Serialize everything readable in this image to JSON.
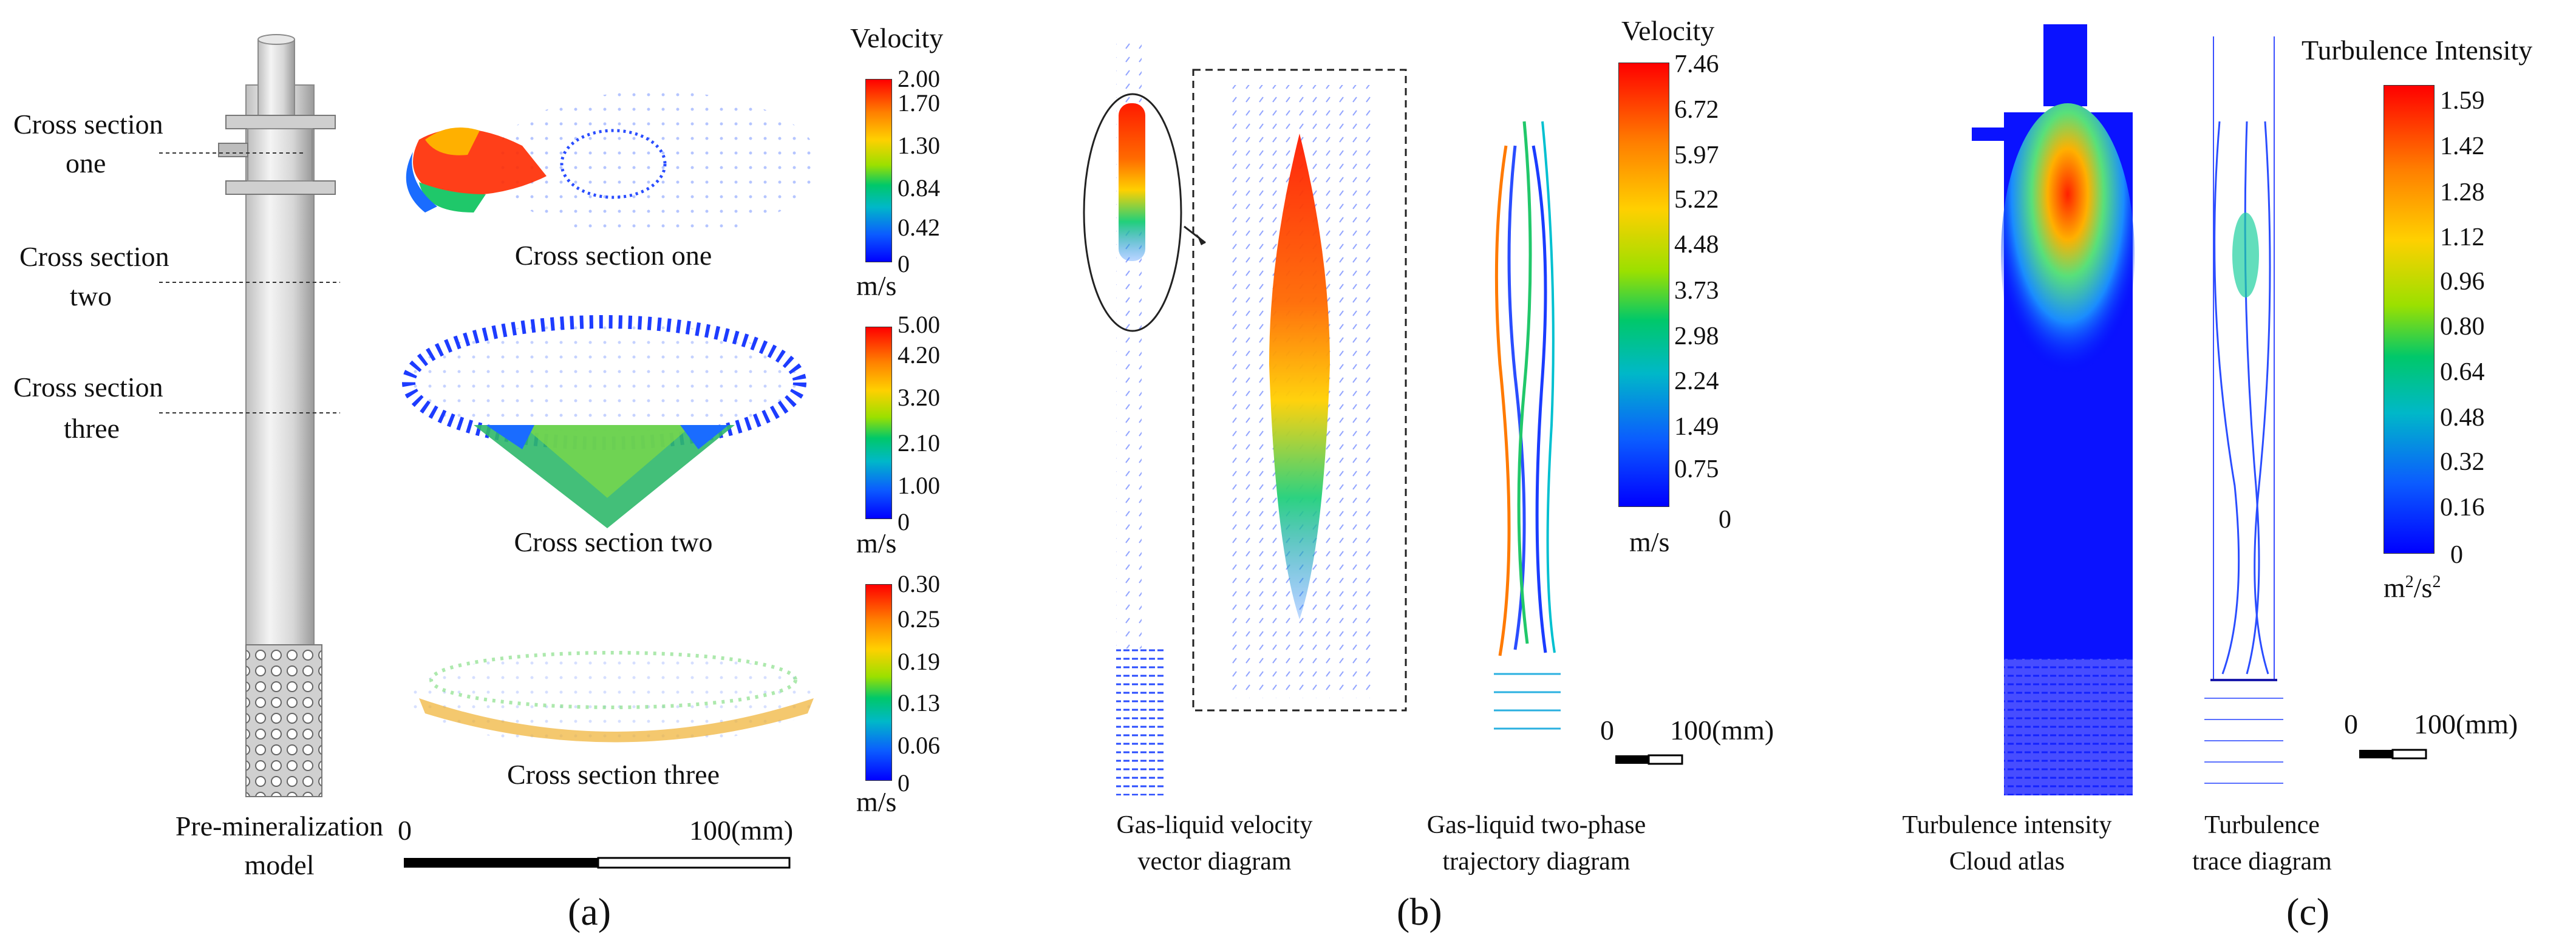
{
  "panel_a": {
    "labels": {
      "cross_one": [
        "Cross section",
        "one"
      ],
      "cross_two": [
        "Cross section",
        "two"
      ],
      "cross_three": [
        "Cross section",
        "three"
      ],
      "model": [
        "Pre-mineralization",
        "model"
      ],
      "view_one": "Cross section one",
      "view_two": "Cross section two",
      "view_three": "Cross section three"
    },
    "legend_title": "Velocity",
    "unit": "m/s",
    "colorbars": [
      {
        "ticks": [
          "2.00",
          "1.70",
          "1.30",
          "0.84",
          "0.42",
          "0"
        ]
      },
      {
        "ticks": [
          "5.00",
          "4.20",
          "3.20",
          "2.10",
          "1.00",
          "0"
        ]
      },
      {
        "ticks": [
          "0.30",
          "0.25",
          "0.19",
          "0.13",
          "0.06",
          "0"
        ]
      }
    ],
    "scale": {
      "start": "0",
      "end": "100(mm)"
    },
    "caption": "(a)"
  },
  "panel_b": {
    "legend_title": "Velocity",
    "unit": "m/s",
    "ticks": [
      "7.46",
      "6.72",
      "5.97",
      "5.22",
      "4.48",
      "3.73",
      "2.98",
      "2.24",
      "1.49",
      "0.75",
      "0"
    ],
    "scale": {
      "start": "0",
      "end": "100(mm)"
    },
    "label_vector": [
      "Gas-liquid velocity",
      "vector  diagram"
    ],
    "label_trajectory": [
      "Gas-liquid two-phase",
      "trajectory  diagram"
    ],
    "caption": "(b)"
  },
  "panel_c": {
    "legend_title": "Turbulence Intensity",
    "unit_base": "m",
    "unit_sup1": "2",
    "unit_mid": "/s",
    "unit_sup2": "2",
    "ticks": [
      "1.59",
      "1.42",
      "1.28",
      "1.12",
      "0.96",
      "0.80",
      "0.64",
      "0.48",
      "0.32",
      "0.16",
      "0"
    ],
    "scale": {
      "start": "0",
      "end": "100(mm)"
    },
    "label_cloud": [
      "Turbulence intensity",
      "Cloud atlas"
    ],
    "label_trace": [
      "Turbulence",
      "trace diagram"
    ],
    "caption": "(c)"
  }
}
